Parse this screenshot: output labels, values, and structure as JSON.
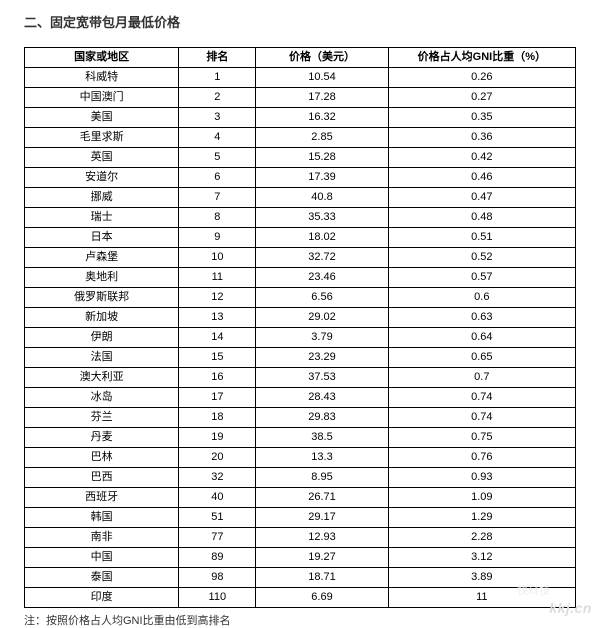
{
  "title": "二、固定宽带包月最低价格",
  "columns": [
    "国家或地区",
    "排名",
    "价格（美元）",
    "价格占人均GNI比重（%）"
  ],
  "rows": [
    [
      "科威特",
      "1",
      "10.54",
      "0.26"
    ],
    [
      "中国澳门",
      "2",
      "17.28",
      "0.27"
    ],
    [
      "美国",
      "3",
      "16.32",
      "0.35"
    ],
    [
      "毛里求斯",
      "4",
      "2.85",
      "0.36"
    ],
    [
      "英国",
      "5",
      "15.28",
      "0.42"
    ],
    [
      "安道尔",
      "6",
      "17.39",
      "0.46"
    ],
    [
      "挪威",
      "7",
      "40.8",
      "0.47"
    ],
    [
      "瑞士",
      "8",
      "35.33",
      "0.48"
    ],
    [
      "日本",
      "9",
      "18.02",
      "0.51"
    ],
    [
      "卢森堡",
      "10",
      "32.72",
      "0.52"
    ],
    [
      "奥地利",
      "11",
      "23.46",
      "0.57"
    ],
    [
      "俄罗斯联邦",
      "12",
      "6.56",
      "0.6"
    ],
    [
      "新加坡",
      "13",
      "29.02",
      "0.63"
    ],
    [
      "伊朗",
      "14",
      "3.79",
      "0.64"
    ],
    [
      "法国",
      "15",
      "23.29",
      "0.65"
    ],
    [
      "澳大利亚",
      "16",
      "37.53",
      "0.7"
    ],
    [
      "冰岛",
      "17",
      "28.43",
      "0.74"
    ],
    [
      "芬兰",
      "18",
      "29.83",
      "0.74"
    ],
    [
      "丹麦",
      "19",
      "38.5",
      "0.75"
    ],
    [
      "巴林",
      "20",
      "13.3",
      "0.76"
    ],
    [
      "巴西",
      "32",
      "8.95",
      "0.93"
    ],
    [
      "西班牙",
      "40",
      "26.71",
      "1.09"
    ],
    [
      "韩国",
      "51",
      "29.17",
      "1.29"
    ],
    [
      "南非",
      "77",
      "12.93",
      "2.28"
    ],
    [
      "中国",
      "89",
      "19.27",
      "3.12"
    ],
    [
      "泰国",
      "98",
      "18.71",
      "3.89"
    ],
    [
      "印度",
      "110",
      "6.69",
      "11"
    ]
  ],
  "footnote": "注：按照价格占人均GNI比重由低到高排名",
  "watermark": "kkj.cn",
  "watermark_sub": "快科技"
}
